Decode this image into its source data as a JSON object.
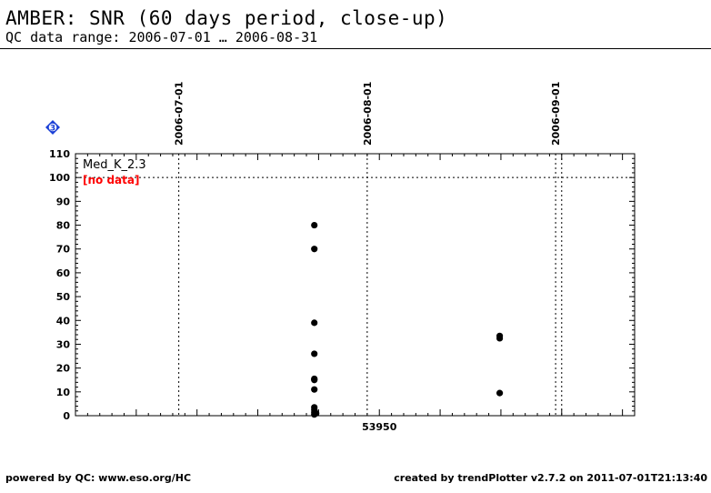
{
  "header": {
    "title": "AMBER: SNR (60 days period, close-up)",
    "subtitle": "QC data range: 2006-07-01 … 2006-08-31"
  },
  "badge": {
    "label": "3",
    "color": "#1a3fd6"
  },
  "footer": {
    "left": "powered by QC: www.eso.org/HC",
    "right": "created by trendPlotter v2.7.2 on 2011-07-01T21:13:40"
  },
  "chart_data": {
    "type": "scatter",
    "xlim": [
      53900,
      53992
    ],
    "ylim": [
      0,
      110
    ],
    "yticks": [
      0,
      10,
      20,
      30,
      40,
      50,
      60,
      70,
      80,
      90,
      100,
      110
    ],
    "xtick_labels": [
      {
        "x": 53950,
        "label": "53950"
      }
    ],
    "date_markers": [
      {
        "x": 53917,
        "label": "2006-07-01"
      },
      {
        "x": 53948,
        "label": "2006-08-01"
      },
      {
        "x": 53979,
        "label": "2006-09-01"
      },
      {
        "x": 53980
      }
    ],
    "reference_line": {
      "y": 100
    },
    "series": [
      {
        "name": "Med_K_2.3",
        "annotation": "[no data]",
        "annotation_color": "#ff0000",
        "color": "#000000",
        "points": [
          {
            "x": 53939.3,
            "y": 80
          },
          {
            "x": 53939.3,
            "y": 70
          },
          {
            "x": 53939.3,
            "y": 39
          },
          {
            "x": 53939.3,
            "y": 26
          },
          {
            "x": 53939.3,
            "y": 15.5
          },
          {
            "x": 53939.3,
            "y": 15
          },
          {
            "x": 53939.3,
            "y": 11
          },
          {
            "x": 53939.3,
            "y": 3.5
          },
          {
            "x": 53939.3,
            "y": 2.5
          },
          {
            "x": 53939.3,
            "y": 1.5
          },
          {
            "x": 53939.6,
            "y": 1
          },
          {
            "x": 53939.3,
            "y": 0.5
          },
          {
            "x": 53969.8,
            "y": 33.5
          },
          {
            "x": 53969.8,
            "y": 32.5
          },
          {
            "x": 53969.8,
            "y": 9.5
          }
        ]
      }
    ]
  }
}
